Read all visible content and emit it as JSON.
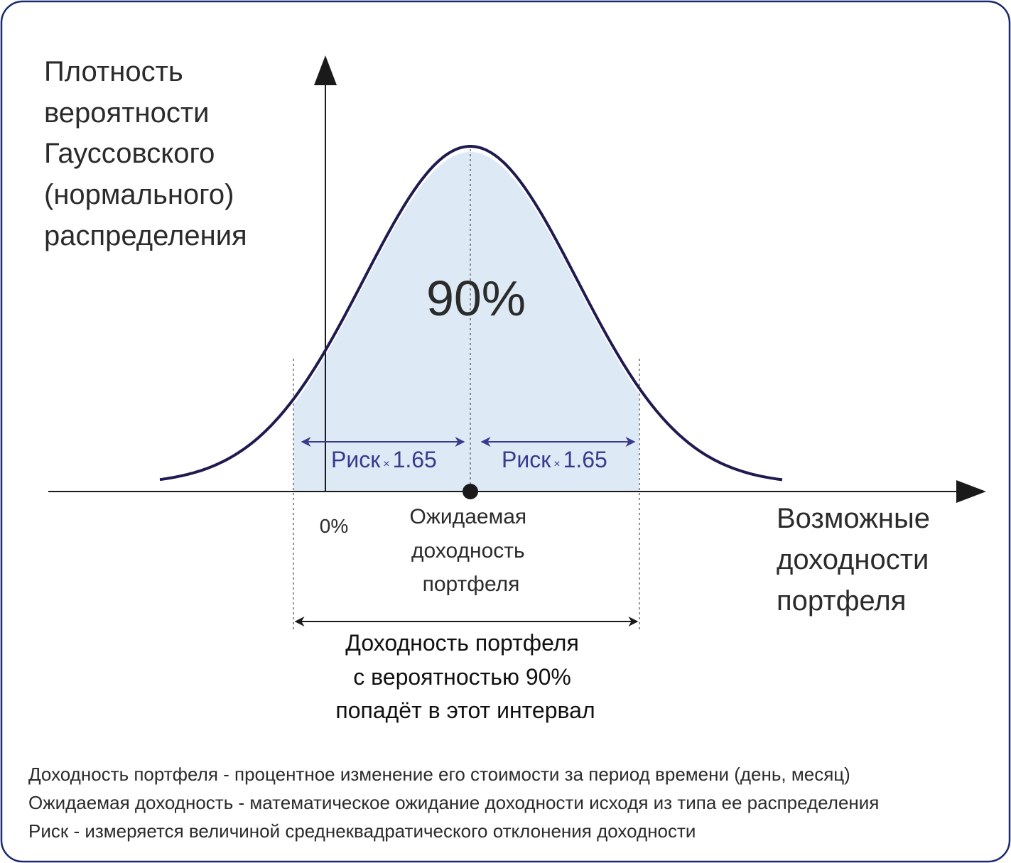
{
  "y_axis_label": [
    "Плотность",
    "вероятности",
    "Гауссовского",
    "(нормального)",
    "распределения"
  ],
  "center_label": "90%",
  "risk_left": {
    "text": "Риск",
    "mult": "×",
    "factor": "1.65"
  },
  "risk_right": {
    "text": "Риск",
    "mult": "×",
    "factor": "1.65"
  },
  "zero_label": "0%",
  "mean_label": [
    "Ожидаемая",
    "доходность",
    "портфеля"
  ],
  "x_axis_label": [
    "Возможные",
    "доходности",
    "портфеля"
  ],
  "interval_label": [
    "Доходность портфеля",
    "с вероятностью 90%",
    "попадёт в этот интервал"
  ],
  "notes": [
    "Доходность портфеля - процентное изменение его стоимости за период времени (день, месяц)",
    "Ожидаемая доходность - математическое ожидание доходности исходя из типа ее распределения",
    "Риск - измеряется величиной среднеквадратического отклонения доходности"
  ]
}
